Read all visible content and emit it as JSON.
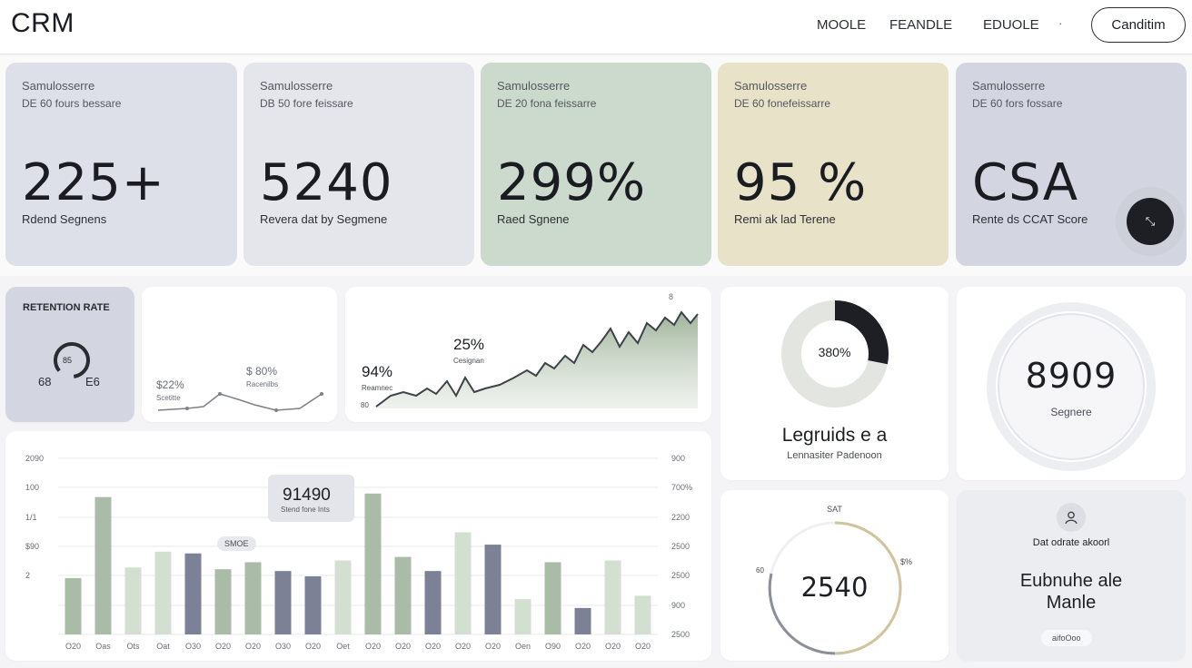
{
  "header": {
    "logo": "CRM",
    "nav": [
      "MOOLE",
      "FEANDLE",
      "EDUOLE"
    ],
    "separator": "·",
    "cta_label": "Canditim"
  },
  "kpis": [
    {
      "line1": "Samulosserre",
      "line2": "DE 60 fours bessare",
      "value": "225+",
      "label": "Rdend Segnens",
      "bg": "#dde0e9"
    },
    {
      "line1": "Samulosserre",
      "line2": "DB 50 fore feissare",
      "value": "5240",
      "label": "Revera dat by Segmene",
      "bg": "#e4e6ec"
    },
    {
      "line1": "Samulosserre",
      "line2": "DE 20 fona feissarre",
      "value": "299%",
      "label": "Raed Sgnene",
      "bg": "#ccdacd"
    },
    {
      "line1": "Samulosserre",
      "line2": "DE 60 fonefeissarre",
      "value": "95 %",
      "label": "Remi ak lad Terene",
      "bg": "#e8e2c8"
    },
    {
      "line1": "Samulosserre",
      "line2": "DE 60 fors fossare",
      "value": "CSA",
      "label": "Rente ds CCAT Score",
      "bg": "#d3d6e0"
    }
  ],
  "fab_icon": "expand-icon",
  "fab_glyph": "⤡",
  "retention": {
    "title": "RETENTION RATE",
    "left": "68",
    "center": "85",
    "right": "E6"
  },
  "sparkline": {
    "a_val": "$22%",
    "a_lbl": "Scetitte",
    "b_val": "$ 80%",
    "b_lbl": "Racenilbs"
  },
  "area": {
    "corner": "8",
    "pct1": "25%",
    "pct1_lbl": "Cesignan",
    "pct2": "94%",
    "pct2_lbl": "Reamnec",
    "bottom": "80"
  },
  "bar": {
    "y_left": [
      "2090",
      "100",
      "1/1",
      "$90",
      "2"
    ],
    "y_right": [
      "900",
      "700%",
      "2200",
      "2500",
      "2500",
      "900",
      "2500"
    ],
    "callout_val": "91490",
    "callout_lbl": "Stend fone Ints",
    "tag": "SMOE"
  },
  "chart_data": {
    "type": "bar",
    "categories": [
      "O20",
      "Oas",
      "Ots",
      "Oat",
      "O30",
      "O20",
      "O20",
      "O30",
      "O20",
      "Oet",
      "O20",
      "O20",
      "O20",
      "O20",
      "O20",
      "Oen",
      "O90",
      "O20",
      "O20",
      "O20"
    ],
    "series": [
      {
        "values": [
          32,
          78,
          38,
          47,
          46,
          37,
          41,
          36,
          33,
          42,
          80,
          44,
          36,
          58,
          51,
          20,
          41,
          15,
          42,
          22
        ]
      }
    ],
    "ylim": [
      0,
      100
    ],
    "colors": [
      "#aabba8",
      "#aabba8",
      "#d3dfd0",
      "#d3dfd0",
      "#7d8196",
      "#aabba8",
      "#aabba8",
      "#7d8196",
      "#7d8196",
      "#d3dfd0",
      "#aabba8",
      "#aabba8",
      "#7d8196",
      "#d3dfd0",
      "#7d8196",
      "#d3dfd0",
      "#aabba8",
      "#7d8196",
      "#d3dfd0",
      "#d3dfd0"
    ]
  },
  "donut1": {
    "value": "380%",
    "title": "Legruids e a",
    "subtitle": "Lennasiter Padenoon",
    "pct": 0.28
  },
  "ring": {
    "value": "8909",
    "label": "Segnere"
  },
  "sat": {
    "title": "SAT",
    "value": "2540",
    "left": "60",
    "right": "$%",
    "pct": 0.5
  },
  "info": {
    "icon": "person-icon",
    "title": "Dat odrate akoorl",
    "main1": "Eubnuhe ale",
    "main2": "Manle",
    "pill": "aifoOoo"
  }
}
